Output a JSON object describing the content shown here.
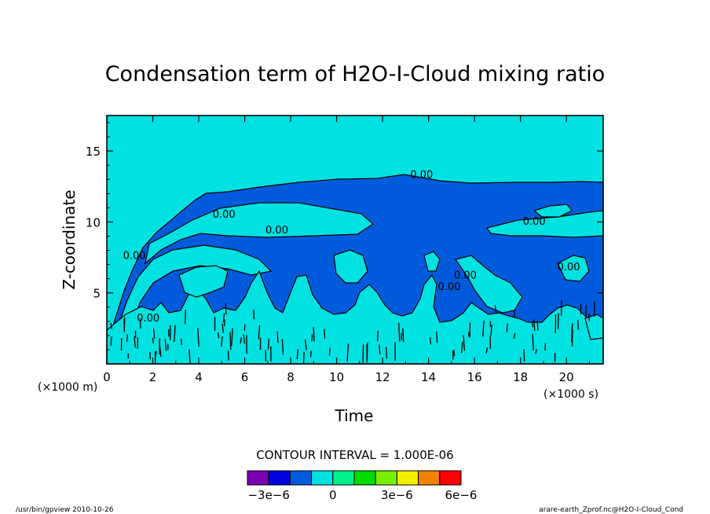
{
  "chart_data": {
    "type": "heatmap",
    "title": "Condensation term of H2O-I-Cloud mixing ratio",
    "xlabel": "Time",
    "ylabel": "Z-coordinate",
    "x_unit": "(×1000 s)",
    "y_unit": "(×1000 m)",
    "xlim": [
      0,
      21.6
    ],
    "ylim": [
      0,
      17.5
    ],
    "x_ticks": [
      0,
      2,
      4,
      6,
      8,
      10,
      12,
      14,
      16,
      18,
      20
    ],
    "y_ticks": [
      5,
      10,
      15
    ],
    "contour_interval_text": "CONTOUR INTERVAL = 1.000E-06",
    "contour_labels": [
      {
        "text": "0.00",
        "x": 13.7,
        "y": 13.1
      },
      {
        "text": "0.00",
        "x": 5.1,
        "y": 10.3
      },
      {
        "text": "0.00",
        "x": 7.4,
        "y": 9.2
      },
      {
        "text": "0.00",
        "x": 18.6,
        "y": 9.8
      },
      {
        "text": "0.00",
        "x": 1.2,
        "y": 7.4
      },
      {
        "text": "0.00",
        "x": 1.8,
        "y": 3.0
      },
      {
        "text": "0.00",
        "x": 15.6,
        "y": 6.0
      },
      {
        "text": "0.00",
        "x": 20.1,
        "y": 6.6
      },
      {
        "text": "0.00",
        "x": 14.9,
        "y": 5.2
      }
    ],
    "colorbar": {
      "colors": [
        "#7a00b4",
        "#0000dc",
        "#005adc",
        "#00e1e1",
        "#00f08c",
        "#00dc00",
        "#78f000",
        "#f0f000",
        "#f08200",
        "#ff0000"
      ],
      "tick_labels": [
        "−3e−6",
        "0",
        "3e−6",
        "6e−6"
      ],
      "tick_values": [
        -3e-06,
        0,
        3e-06,
        6e-06
      ]
    },
    "regions": [
      {
        "level": "below_zero",
        "color": "#005adc",
        "description_value": -1e-06
      },
      {
        "level": "zero_to_1e-6",
        "color": "#00e1e1",
        "description_value": 0
      }
    ]
  },
  "footer": {
    "left": "/usr/bin/gpview  2010-10-26",
    "right": "arare-earth_Zprof.nc@H2O-I-Cloud_Cond"
  }
}
